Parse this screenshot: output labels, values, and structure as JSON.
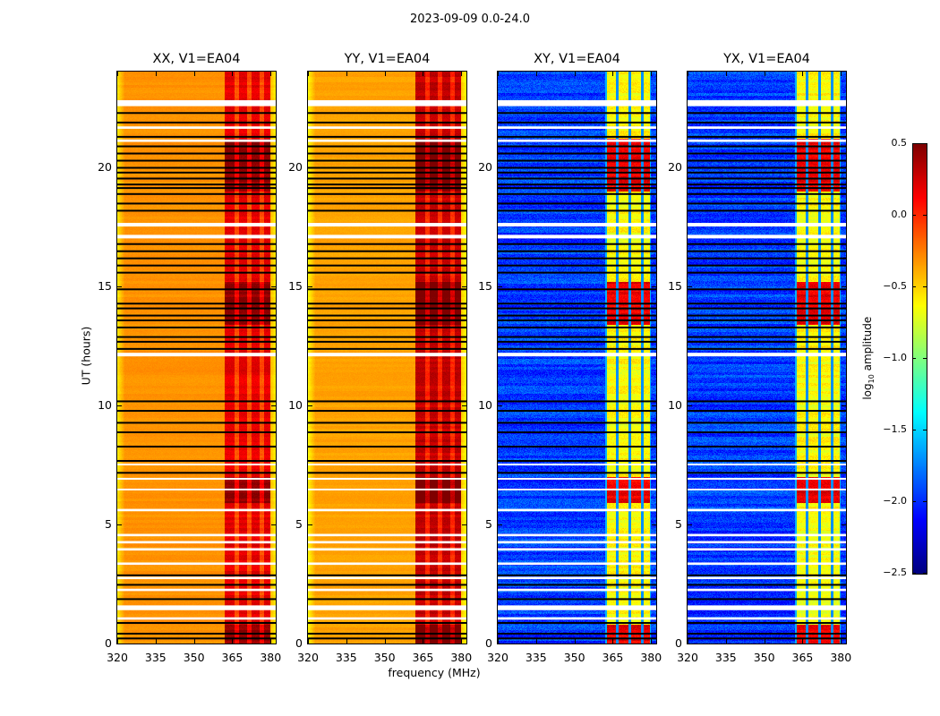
{
  "chart_data": {
    "type": "heatmap",
    "suptitle": "2023-09-09 0.0-24.0",
    "xlabel": "frequency (MHz)",
    "ylabel": "UT (hours)",
    "xlim": [
      320,
      382
    ],
    "ylim": [
      0,
      24
    ],
    "xticks": [
      320,
      335,
      350,
      365,
      380
    ],
    "yticks": [
      0,
      5,
      10,
      15,
      20
    ],
    "colormap": "jet",
    "colorbar": {
      "label_prefix": "log",
      "label_sub": "10",
      "label_suffix": " amplitude",
      "range": [
        -2.5,
        0.5
      ],
      "ticks": [
        "0.5",
        "0.0",
        "−0.5",
        "−1.0",
        "−1.5",
        "−2.0",
        "−2.5"
      ],
      "tick_values": [
        0.5,
        0.0,
        -0.5,
        -1.0,
        -1.5,
        -2.0,
        -2.5
      ]
    },
    "band_edges_mhz": [
      362,
      381
    ],
    "channel_gaps_mhz": [
      366.5,
      371.5,
      376.5
    ],
    "flagged_white_hours": [
      [
        22.55,
        22.8
      ],
      [
        21.6,
        21.7
      ],
      [
        21.05,
        21.15
      ],
      [
        17.5,
        17.65
      ],
      [
        17.0,
        17.15
      ],
      [
        12.05,
        12.2
      ],
      [
        5.55,
        5.65
      ],
      [
        1.4,
        1.6
      ],
      [
        4.5,
        4.6
      ],
      [
        4.2,
        4.3
      ],
      [
        3.9,
        4.0
      ],
      [
        3.3,
        3.4
      ],
      [
        2.7,
        2.8
      ],
      [
        2.2,
        2.3
      ],
      [
        1.0,
        1.1
      ],
      [
        7.5,
        7.55
      ],
      [
        6.9,
        6.95
      ],
      [
        6.45,
        6.5
      ]
    ],
    "black_line_hours": [
      22.3,
      21.9,
      21.3,
      20.9,
      20.6,
      20.3,
      20.0,
      19.8,
      19.55,
      19.3,
      19.15,
      18.9,
      18.5,
      18.2,
      16.8,
      16.5,
      16.2,
      15.9,
      15.6,
      14.9,
      14.3,
      14.1,
      13.8,
      13.6,
      13.3,
      12.9,
      12.7,
      12.4,
      10.2,
      9.8,
      9.3,
      8.9,
      8.3,
      7.7,
      7.2,
      2.9,
      2.5,
      1.9,
      0.9,
      0.45,
      0.25
    ],
    "panels": [
      {
        "title": "XX, V1=EA04",
        "kind": "parallel",
        "base": -0.35,
        "band": 0.1
      },
      {
        "title": "YY, V1=EA04",
        "kind": "parallel",
        "base": -0.4,
        "band": 0.2
      },
      {
        "title": "XY, V1=EA04",
        "kind": "cross",
        "base": -2.2,
        "band": -0.8
      },
      {
        "title": "YX, V1=EA04",
        "kind": "cross",
        "base": -2.2,
        "band": -0.8
      }
    ]
  }
}
